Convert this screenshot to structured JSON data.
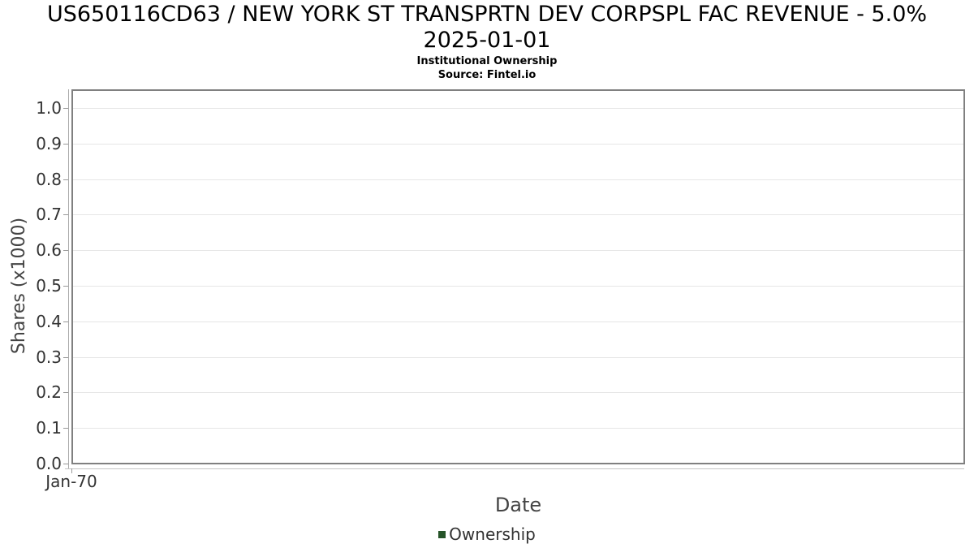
{
  "chart": {
    "title_line1": "US650116CD63 / NEW YORK ST TRANSPRTN DEV CORPSPL FAC REVENUE - 5.0%",
    "title_line2": "2025-01-01",
    "subtitle": "Institutional Ownership",
    "source": "Source: Fintel.io"
  },
  "chart_data": {
    "type": "line",
    "title": "US650116CD63 / NEW YORK ST TRANSPRTN DEV CORPSPL FAC REVENUE - 5.0% 2025-01-01",
    "subtitle": "Institutional Ownership",
    "source_note": "Source: Fintel.io",
    "xlabel": "Date",
    "ylabel": "Shares (x1000)",
    "x_ticks": [
      "Jan-70"
    ],
    "y_ticks": [
      "0.0",
      "0.1",
      "0.2",
      "0.3",
      "0.4",
      "0.5",
      "0.6",
      "0.7",
      "0.8",
      "0.9",
      "1.0"
    ],
    "ylim": [
      0.0,
      1.05
    ],
    "grid": true,
    "legend_position": "bottom",
    "series": [
      {
        "name": "Ownership",
        "color": "#265429",
        "x": [],
        "values": []
      }
    ]
  },
  "colors": {
    "grid": "#e6e6e6",
    "plot_border": "#808080",
    "axis_line": "#aaaaaa",
    "tick": "#999999",
    "tick_text": "#333333",
    "axis_title_text": "#444444",
    "legend_marker": "#265429"
  }
}
